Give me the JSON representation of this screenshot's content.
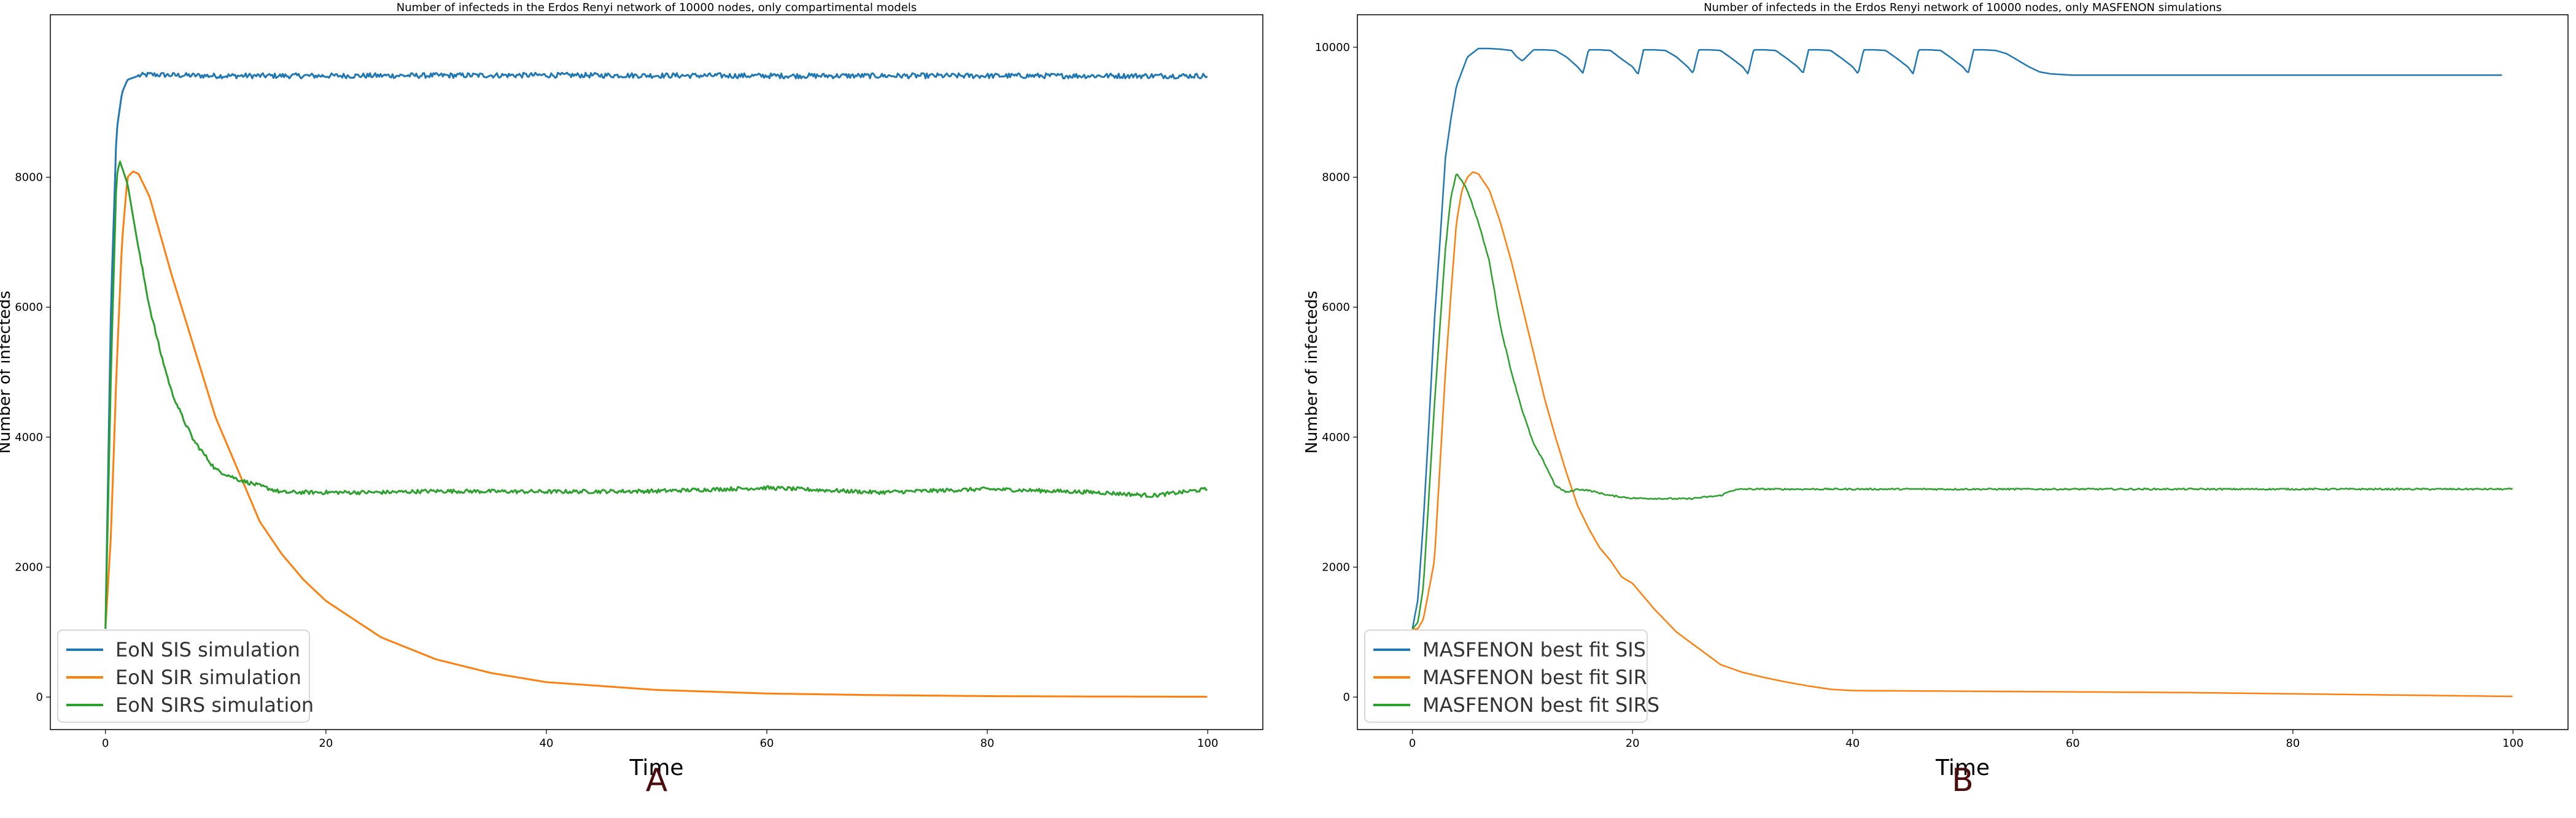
{
  "colors": {
    "sis": "#1f77b4",
    "sir": "#ff7f0e",
    "sirs": "#2ca02c",
    "panel_letter": "#4a0e0e"
  },
  "panels": {
    "A": {
      "letter": "A"
    },
    "B": {
      "letter": "B"
    }
  },
  "chart_data": [
    {
      "type": "line",
      "title": "Number of infecteds in the Erdos Renyi network of 10000 nodes, only compartimental models",
      "xlabel": "Time",
      "ylabel": "Number of infecteds",
      "xlim": [
        -5,
        105
      ],
      "ylim": [
        -500,
        10500
      ],
      "xticks": [
        0,
        20,
        40,
        60,
        80,
        100
      ],
      "yticks": [
        0,
        2000,
        4000,
        6000,
        8000
      ],
      "legend_position": "lower-left",
      "series": [
        {
          "name": "EoN SIS simulation",
          "color_key": "sis",
          "noise": 40,
          "x": [
            0,
            0.5,
            1,
            1.5,
            2,
            3,
            4,
            6,
            10,
            20,
            40,
            60,
            80,
            100
          ],
          "y": [
            1050,
            6000,
            8700,
            9300,
            9500,
            9560,
            9580,
            9570,
            9560,
            9560,
            9570,
            9560,
            9560,
            9560
          ]
        },
        {
          "name": "EoN SIR simulation",
          "color_key": "sir",
          "noise": 0,
          "x": [
            0,
            0.5,
            1,
            1.5,
            2,
            2.5,
            3,
            4,
            5,
            6,
            8,
            10,
            12,
            14,
            16,
            18,
            20,
            25,
            30,
            35,
            40,
            50,
            60,
            70,
            80,
            90,
            100
          ],
          "y": [
            1050,
            2500,
            5000,
            7000,
            8000,
            8090,
            8050,
            7700,
            7100,
            6500,
            5400,
            4300,
            3500,
            2700,
            2200,
            1800,
            1480,
            920,
            580,
            370,
            230,
            110,
            55,
            30,
            15,
            8,
            5
          ]
        },
        {
          "name": "EoN SIRS simulation",
          "color_key": "sirs",
          "noise": 30,
          "x": [
            0,
            0.5,
            1,
            1.3,
            2,
            3,
            4,
            5,
            6,
            7,
            8,
            10,
            12,
            14,
            16,
            20,
            25,
            30,
            40,
            50,
            60,
            70,
            80,
            90,
            95,
            100
          ],
          "y": [
            1050,
            5000,
            8000,
            8250,
            7900,
            6900,
            6000,
            5300,
            4700,
            4300,
            3950,
            3500,
            3350,
            3250,
            3150,
            3150,
            3150,
            3170,
            3160,
            3170,
            3220,
            3150,
            3200,
            3150,
            3100,
            3200
          ]
        }
      ]
    },
    {
      "type": "line",
      "title": "Number of infecteds in the Erdos Renyi network of 10000 nodes, only MASFENON simulations",
      "xlabel": "Time",
      "ylabel": "Number of infecteds",
      "xlim": [
        -5,
        105
      ],
      "ylim": [
        -500,
        10500
      ],
      "xticks": [
        0,
        20,
        40,
        60,
        80,
        100
      ],
      "yticks": [
        0,
        2000,
        4000,
        6000,
        8000,
        10000
      ],
      "legend_position": "lower-left",
      "series": [
        {
          "name": "MASFENON best fit SIS",
          "color_key": "sis",
          "noise": 0,
          "x": [
            0,
            0.5,
            1,
            1.5,
            2,
            2.5,
            3,
            3.5,
            4,
            5,
            6,
            7,
            8,
            9,
            9.5,
            10,
            11,
            12,
            13,
            14,
            15,
            15.5,
            16,
            17,
            18,
            19,
            20,
            20.5,
            21,
            22,
            23,
            24,
            25,
            25.5,
            26,
            27,
            28,
            29,
            30,
            30.5,
            31,
            32,
            33,
            34,
            35,
            35.5,
            36,
            37,
            38,
            39,
            40,
            40.5,
            41,
            42,
            43,
            44,
            45,
            45.5,
            46,
            47,
            48,
            49,
            50,
            50.5,
            51,
            52,
            53,
            54,
            55,
            56,
            57,
            58,
            60,
            65,
            70,
            80,
            90,
            99
          ],
          "y": [
            1050,
            1500,
            2700,
            4200,
            5800,
            7000,
            8300,
            8900,
            9400,
            9850,
            9980,
            9980,
            9970,
            9950,
            9850,
            9790,
            9960,
            9960,
            9950,
            9850,
            9700,
            9600,
            9960,
            9960,
            9950,
            9820,
            9700,
            9580,
            9960,
            9960,
            9950,
            9850,
            9700,
            9600,
            9960,
            9960,
            9950,
            9830,
            9700,
            9590,
            9960,
            9960,
            9950,
            9830,
            9700,
            9600,
            9960,
            9960,
            9950,
            9830,
            9700,
            9590,
            9960,
            9960,
            9950,
            9830,
            9700,
            9590,
            9960,
            9960,
            9950,
            9830,
            9700,
            9600,
            9960,
            9960,
            9950,
            9900,
            9800,
            9700,
            9620,
            9590,
            9570,
            9570,
            9570,
            9570,
            9570,
            9570
          ]
        },
        {
          "name": "MASFENON best fit SIR",
          "color_key": "sir",
          "noise": 0,
          "x": [
            0,
            0.5,
            1,
            2,
            3,
            3.5,
            4,
            4.5,
            5,
            5.5,
            6,
            7,
            8,
            9,
            10,
            11,
            12,
            13,
            14,
            15,
            16,
            17,
            18,
            19,
            20,
            21,
            22,
            24,
            26,
            28,
            30,
            32,
            34,
            36,
            38,
            40,
            50,
            60,
            70,
            80,
            90,
            100
          ],
          "y": [
            1050,
            1050,
            1200,
            2100,
            5000,
            6200,
            7300,
            7800,
            8000,
            8080,
            8050,
            7800,
            7300,
            6700,
            6000,
            5300,
            4600,
            4000,
            3450,
            2950,
            2600,
            2300,
            2100,
            1850,
            1750,
            1550,
            1350,
            1000,
            750,
            500,
            380,
            300,
            230,
            170,
            120,
            100,
            90,
            80,
            70,
            50,
            30,
            10
          ]
        },
        {
          "name": "MASFENON best fit SIRS",
          "color_key": "sirs",
          "noise": 12,
          "x": [
            0,
            0.5,
            1,
            2,
            3,
            3.5,
            4,
            4.5,
            5,
            6,
            7,
            8,
            9,
            10,
            11,
            12,
            13,
            14,
            14.5,
            15,
            16,
            18,
            20,
            25,
            28,
            29,
            30,
            40,
            60,
            80,
            100
          ],
          "y": [
            1050,
            1150,
            1700,
            4500,
            6900,
            7700,
            8050,
            7950,
            7800,
            7300,
            6700,
            5700,
            5000,
            4400,
            3900,
            3600,
            3250,
            3150,
            3170,
            3200,
            3180,
            3100,
            3060,
            3050,
            3100,
            3180,
            3200,
            3200,
            3200,
            3200,
            3200
          ]
        }
      ]
    }
  ]
}
